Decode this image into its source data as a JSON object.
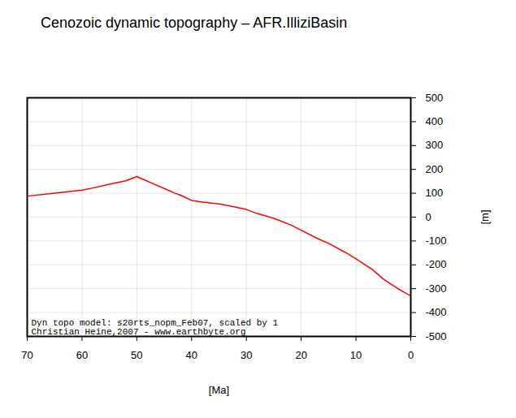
{
  "chart_data": {
    "type": "line",
    "title": "Cenozoic dynamic topography – AFR.IlliziBasin",
    "xlabel": "[Ma]",
    "ylabel": "[m]",
    "annotations": [
      "Dyn topo model: s20rts_nopm_Feb07, scaled by 1",
      "Christian Heine,2007 - www.earthbyte.org"
    ],
    "x": [
      70,
      65,
      60,
      58,
      55,
      52,
      50,
      47,
      45,
      43,
      42,
      40,
      38,
      35,
      33,
      30,
      28,
      25,
      22,
      20,
      17,
      15,
      12,
      10,
      7,
      5,
      2,
      0
    ],
    "values": [
      88,
      100,
      113,
      122,
      138,
      152,
      170,
      140,
      120,
      100,
      92,
      70,
      63,
      55,
      47,
      32,
      15,
      -5,
      -32,
      -55,
      -90,
      -110,
      -147,
      -175,
      -220,
      -260,
      -305,
      -330
    ],
    "color": "red",
    "xlim": [
      70,
      0
    ],
    "ylim": [
      -500,
      500
    ],
    "xticks": [
      70,
      60,
      50,
      40,
      30,
      20,
      10,
      0
    ],
    "yticks": [
      -500,
      -400,
      -300,
      -200,
      -100,
      0,
      100,
      200,
      300,
      400,
      500
    ],
    "grid": true
  }
}
